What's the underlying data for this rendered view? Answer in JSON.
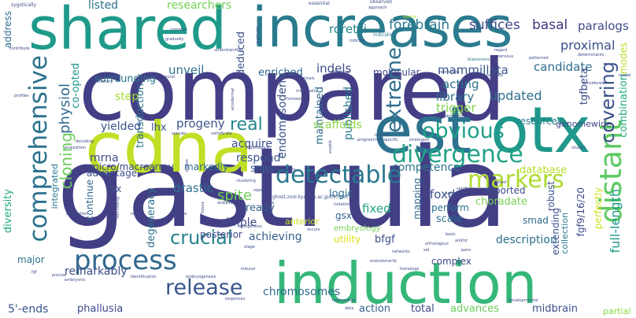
{
  "words": [
    {
      "key": "compared",
      "text": "compared",
      "color": "#433e85"
    },
    {
      "key": "gastrula",
      "text": "gastrula",
      "color": "#423f85"
    },
    {
      "key": "shared",
      "text": "shared",
      "color": "#1f9a8a"
    },
    {
      "key": "increases",
      "text": "increases",
      "color": "#2a7b8e"
    },
    {
      "key": "cdna",
      "text": "cdna",
      "color": "#c0df25"
    },
    {
      "key": "est",
      "text": "est",
      "color": "#2c728e"
    },
    {
      "key": "otx",
      "text": "otx",
      "color": "#1f988b"
    },
    {
      "key": "induction",
      "text": "induction",
      "color": "#35b779"
    },
    {
      "key": "process",
      "text": "process",
      "color": "#31688e"
    },
    {
      "key": "detectable",
      "text": "detectable",
      "color": "#2a788e"
    },
    {
      "key": "comprehensive",
      "text": "comprehensive",
      "color": "#2c738e"
    },
    {
      "key": "distant",
      "text": "distant",
      "color": "#5ec962"
    },
    {
      "key": "divergence",
      "text": "divergence",
      "color": "#20a386"
    },
    {
      "key": "markers",
      "text": "markers",
      "color": "#addc30"
    },
    {
      "key": "obvious",
      "text": "obvious",
      "color": "#1fa088"
    },
    {
      "key": "crucial",
      "text": "crucial",
      "color": "#26828e"
    },
    {
      "key": "release",
      "text": "release",
      "color": "#39558c"
    },
    {
      "key": "extreme",
      "text": "extreme",
      "color": "#2e6d8e"
    },
    {
      "key": "covering",
      "text": "covering",
      "color": "#3b528b"
    },
    {
      "key": "cloning",
      "text": "cloning",
      "color": "#6ccd5a"
    },
    {
      "key": "physiol",
      "text": "physiol",
      "color": "#306a8e"
    },
    {
      "key": "real",
      "text": "real",
      "color": "#24878e"
    },
    {
      "key": "forebrain",
      "text": "forebrain",
      "color": "#2a788e"
    },
    {
      "key": "suffices",
      "text": "suffices",
      "color": "#3f4889"
    },
    {
      "key": "basal",
      "text": "basal",
      "color": "#46337f"
    },
    {
      "key": "paralogs",
      "text": "paralogs",
      "color": "#3e4a89"
    },
    {
      "key": "proximal",
      "text": "proximal",
      "color": "#3c4f8a"
    },
    {
      "key": "listed",
      "text": "listed",
      "color": "#2d708e"
    },
    {
      "key": "researchers",
      "text": "researchers",
      "color": "#75d054"
    },
    {
      "key": "roretzi",
      "text": "roretzi",
      "color": "#25848e"
    },
    {
      "key": "mammillata",
      "text": "mammillata",
      "color": "#3a538b"
    },
    {
      "key": "candidate",
      "text": "candidate",
      "color": "#2f6c8e"
    },
    {
      "key": "indels",
      "text": "indels",
      "color": "#3d4e8a"
    },
    {
      "key": "molecular",
      "text": "molecular",
      "color": "#3e4989"
    },
    {
      "key": "surrounding",
      "text": "surrounding",
      "color": "#2a768e"
    },
    {
      "key": "unveil",
      "text": "unveil",
      "color": "#2d718e"
    },
    {
      "key": "enriched",
      "text": "enriched",
      "color": "#31668e"
    },
    {
      "key": "deduced",
      "text": "deduced",
      "color": "#3b528b"
    },
    {
      "key": "endomesoderm",
      "text": "endomesoderm",
      "color": "#3a538b"
    },
    {
      "key": "maintained",
      "text": "maintained",
      "color": "#2f6b8e"
    },
    {
      "key": "published",
      "text": "published",
      "color": "#29798e"
    },
    {
      "key": "acting",
      "text": "acting",
      "color": "#2a768e"
    },
    {
      "key": "library",
      "text": "library",
      "color": "#2c718e"
    },
    {
      "key": "updated",
      "text": "updated",
      "color": "#2e6e8e"
    },
    {
      "key": "trigger",
      "text": "trigger",
      "color": "#7fd34e"
    },
    {
      "key": "tgfbeta",
      "text": "tgfbeta",
      "color": "#3d4d8a"
    },
    {
      "key": "modes",
      "text": "modes",
      "color": "#b5de2b"
    },
    {
      "key": "combination",
      "text": "combination",
      "color": "#25ab82"
    },
    {
      "key": "step",
      "text": "step",
      "color": "#a8db34"
    },
    {
      "key": "co-opted",
      "text": "co-opted",
      "color": "#1f958b"
    },
    {
      "key": "transduction",
      "text": "transduction",
      "color": "#2c728e"
    },
    {
      "key": "yielded",
      "text": "yielded",
      "color": "#3b528b"
    },
    {
      "key": "lhx",
      "text": "lhx",
      "color": "#3d4e8a"
    },
    {
      "key": "progeny",
      "text": "progeny",
      "color": "#3a548c"
    },
    {
      "key": "scaffolds",
      "text": "scaffolds",
      "color": "#8bd646"
    },
    {
      "key": "resources",
      "text": "resources",
      "color": "#26818e"
    },
    {
      "key": "genomewide",
      "text": "genomewide",
      "color": "#3f4788"
    },
    {
      "key": "acquire",
      "text": "acquire",
      "color": "#3e4c8a"
    },
    {
      "key": "competence",
      "text": "competence",
      "color": "#2c718e"
    },
    {
      "key": "mrna",
      "text": "mrna",
      "color": "#3e4a89"
    },
    {
      "key": "respond",
      "text": "respond",
      "color": "#3a548c"
    },
    {
      "key": "advantage",
      "text": "advantage",
      "color": "#3c4f8a"
    },
    {
      "key": "snps",
      "text": "snps",
      "color": "#355f8d"
    },
    {
      "key": "micro/macroarray",
      "text": "micro/macroarray",
      "color": "#3f4889"
    },
    {
      "key": "markedly",
      "text": "markedly",
      "color": "#2f6c8e"
    },
    {
      "key": "database",
      "text": "database",
      "color": "#b5de2b"
    },
    {
      "key": "reported",
      "text": "reported",
      "color": "#3d4d8a"
    },
    {
      "key": "tadpoles",
      "text": "tadpoles",
      "color": "#3a538b"
    },
    {
      "key": "fgf9/16/20",
      "text": "fgf9/16/20",
      "color": "#3e4a89"
    },
    {
      "key": "perfectly",
      "text": "perfectly",
      "color": "#d0e11c"
    },
    {
      "key": "full-length",
      "text": "full-length",
      "color": "#1f978b"
    },
    {
      "key": "integrated",
      "text": "integrated",
      "color": "#2a778e"
    },
    {
      "key": "diversity",
      "text": "diversity",
      "color": "#22a785"
    },
    {
      "key": "address",
      "text": "address",
      "color": "#2e6d8e"
    },
    {
      "key": "fox",
      "text": "fox",
      "color": "#3d4e8a"
    },
    {
      "key": "continue",
      "text": "continue",
      "color": "#31688e"
    },
    {
      "key": "drastic",
      "text": "drastic",
      "color": "#2c738e"
    },
    {
      "key": "degeneracy",
      "text": "degeneracy",
      "color": "#2c718e"
    },
    {
      "key": "spite",
      "text": "spite",
      "color": "#70cf57"
    },
    {
      "key": "logic",
      "text": "logic",
      "color": "#2c738e"
    },
    {
      "key": "ready",
      "text": "ready",
      "color": "#35608d"
    },
    {
      "key": "gsx",
      "text": "gsx",
      "color": "#35608d"
    },
    {
      "key": "fixed",
      "text": "fixed",
      "color": "#21a685"
    },
    {
      "key": "foxd",
      "text": "foxd",
      "color": "#3a548c"
    },
    {
      "key": "mapping",
      "text": "mapping",
      "color": "#31688e"
    },
    {
      "key": "perform",
      "text": "perform",
      "color": "#2c718e"
    },
    {
      "key": "scale",
      "text": "scale",
      "color": "#2e6f8e"
    },
    {
      "key": "choradate",
      "text": "choradate",
      "color": "#7ad151"
    },
    {
      "key": "robust",
      "text": "robust",
      "color": "#3b518b"
    },
    {
      "key": "extending",
      "text": "extending",
      "color": "#3b528b"
    },
    {
      "key": "smad",
      "text": "smad",
      "color": "#30698e"
    },
    {
      "key": "collection",
      "text": "collection",
      "color": "#2a778e"
    },
    {
      "key": "crucial2",
      "text": "simple",
      "color": "#3e4a89"
    },
    {
      "key": "posterior",
      "text": "posterior",
      "color": "#3e4989"
    },
    {
      "key": "anterior",
      "text": "anterior",
      "color": "#cae11f"
    },
    {
      "key": "embryology",
      "text": "embryology",
      "color": "#75d054"
    },
    {
      "key": "achieving",
      "text": "achieving",
      "color": "#355e8d"
    },
    {
      "key": "utility",
      "text": "utility",
      "color": "#d8e219"
    },
    {
      "key": "bfgf",
      "text": "bfgf",
      "color": "#3e4a89"
    },
    {
      "key": "description",
      "text": "description",
      "color": "#2c718e"
    },
    {
      "key": "remarkably",
      "text": "remarkably",
      "color": "#3d4d8a"
    },
    {
      "key": "major",
      "text": "major",
      "color": "#2d708e"
    },
    {
      "key": "complex",
      "text": "complex",
      "color": "#3e4a89"
    },
    {
      "key": "chromosomes",
      "text": "chromosomes",
      "color": "#2f6c8e"
    },
    {
      "key": "action",
      "text": "action",
      "color": "#355f8d"
    },
    {
      "key": "total",
      "text": "total",
      "color": "#3e4989"
    },
    {
      "key": "advances",
      "text": "advances",
      "color": "#6ccd5a"
    },
    {
      "key": "midbrain",
      "text": "midbrain",
      "color": "#3c4f8a"
    },
    {
      "key": "partial",
      "text": "partial",
      "color": "#8bd646"
    },
    {
      "key": "5-ends",
      "text": "5'-ends",
      "color": "#39568c"
    },
    {
      "key": "phallusia",
      "text": "phallusia",
      "color": "#3e4989"
    },
    {
      "key": "url",
      "text": "ghost.zool.kyoto-u.ac.jp/tft.html",
      "color": "#3b528b"
    },
    {
      "key": "s1",
      "text": "zygotically",
      "color": "#3d4e8a"
    },
    {
      "key": "s2",
      "text": "essential",
      "color": "#3b528b"
    },
    {
      "key": "s3",
      "text": "observed",
      "color": "#3b528b"
    },
    {
      "key": "s4",
      "text": "approach",
      "color": "#3e4a89"
    },
    {
      "key": "s5",
      "text": "vesicle",
      "color": "#b5de2b"
    },
    {
      "key": "s6",
      "text": "indicate",
      "color": "#3e4989"
    },
    {
      "key": "s7",
      "text": "indication",
      "color": "#2a778e"
    },
    {
      "key": "s8",
      "text": "determinants",
      "color": "#3e4a89"
    },
    {
      "key": "s9",
      "text": "regard",
      "color": "#3e4a89"
    },
    {
      "key": "s10",
      "text": "nervous",
      "color": "#3e4a89"
    },
    {
      "key": "s11",
      "text": "patterned",
      "color": "#3e4989"
    },
    {
      "key": "s12",
      "text": "blastomere",
      "color": "#2a788e"
    },
    {
      "key": "s13",
      "text": "neural",
      "color": "#3e4989"
    },
    {
      "key": "s14",
      "text": "restriction",
      "color": "#3e4a89"
    },
    {
      "key": "s15",
      "text": "examined",
      "color": "#3e4a89"
    },
    {
      "key": "s16",
      "text": "considered",
      "color": "#3e4989"
    },
    {
      "key": "s17",
      "text": "model",
      "color": "#3e4a89"
    },
    {
      "key": "s18",
      "text": "genomics",
      "color": "#3e4a89"
    },
    {
      "key": "s19",
      "text": "evolutionary",
      "color": "#3e4a89"
    },
    {
      "key": "s20",
      "text": "animals",
      "color": "#3e4a89"
    },
    {
      "key": "s21",
      "text": "homeobox",
      "color": "#3e4989"
    },
    {
      "key": "s22",
      "text": "downstream",
      "color": "#3e4a89"
    },
    {
      "key": "s23",
      "text": "species",
      "color": "#3e4a89"
    },
    {
      "key": "s24",
      "text": "vertebrate",
      "color": "#3e4a89"
    },
    {
      "key": "s25",
      "text": "ectodermal",
      "color": "#3e4a89"
    },
    {
      "key": "s26",
      "text": "maternally",
      "color": "#3e4a89"
    },
    {
      "key": "s27",
      "text": "line-specific",
      "color": "#3e4a89"
    },
    {
      "key": "s28",
      "text": "strategies",
      "color": "#3e4a89"
    },
    {
      "key": "s29",
      "text": "program",
      "color": "#3e4a89"
    },
    {
      "key": "s30",
      "text": "decoding",
      "color": "#3e4a89"
    },
    {
      "key": "s31",
      "text": "acquisition",
      "color": "#3e4a89"
    },
    {
      "key": "s32",
      "text": "redundancy",
      "color": "#3e4a89"
    },
    {
      "key": "s33",
      "text": "constraints",
      "color": "#3e4a89"
    },
    {
      "key": "s34",
      "text": "subset",
      "color": "#3e4a89"
    },
    {
      "key": "s35",
      "text": "clustering",
      "color": "#3e4a89"
    },
    {
      "key": "s36",
      "text": "repeated",
      "color": "#3e4a89"
    },
    {
      "key": "s37",
      "text": "sequencing",
      "color": "#3e4a89"
    },
    {
      "key": "s38",
      "text": "non-coding",
      "color": "#3e4a89"
    },
    {
      "key": "s39",
      "text": "orientation",
      "color": "#3e4a89"
    },
    {
      "key": "s40",
      "text": "nodal",
      "color": "#3e4a89"
    },
    {
      "key": "s41",
      "text": "analyze",
      "color": "#3e4a89"
    },
    {
      "key": "s42",
      "text": "analyses",
      "color": "#3e4a89"
    },
    {
      "key": "s43",
      "text": "endogenous",
      "color": "#3e4a89"
    },
    {
      "key": "s44",
      "text": "occurs",
      "color": "#3e4a89"
    },
    {
      "key": "s45",
      "text": "networks",
      "color": "#3e4a89"
    },
    {
      "key": "s46",
      "text": "orthologous",
      "color": "#3e4a89"
    },
    {
      "key": "s47",
      "text": "set",
      "color": "#3e4a89"
    },
    {
      "key": "s48",
      "text": "pairs",
      "color": "#3e4a89"
    },
    {
      "key": "s49",
      "text": "inducer",
      "color": "#3e4a89"
    },
    {
      "key": "s50",
      "text": "evolutionarily",
      "color": "#3e4a89"
    },
    {
      "key": "s51",
      "text": "homologs",
      "color": "#3e4a89"
    },
    {
      "key": "s52",
      "text": "identification",
      "color": "#3e4a89"
    },
    {
      "key": "s53",
      "text": "embryogenesis",
      "color": "#3e4a89"
    },
    {
      "key": "s54",
      "text": "precise",
      "color": "#3e4a89"
    },
    {
      "key": "s55",
      "text": "embryonic",
      "color": "#3e4a89"
    },
    {
      "key": "s56",
      "text": "responses",
      "color": "#3e4a89"
    },
    {
      "key": "s57",
      "text": "halocynthia",
      "color": "#3e4a89"
    },
    {
      "key": "s58",
      "text": "data",
      "color": "#3e4a89"
    },
    {
      "key": "s59",
      "text": "developmental",
      "color": "#3e4a89"
    },
    {
      "key": "s60",
      "text": "sandbox",
      "color": "#3e4a89"
    },
    {
      "key": "s61",
      "text": "contribute",
      "color": "#3e4a89"
    },
    {
      "key": "s62",
      "text": "profiles",
      "color": "#3e4a89"
    },
    {
      "key": "s63",
      "text": "common",
      "color": "#3e4a89"
    },
    {
      "key": "s64",
      "text": "gradually",
      "color": "#3e4a89"
    },
    {
      "key": "s65",
      "text": "understanding",
      "color": "#3e4a89"
    },
    {
      "key": "s66",
      "text": "include",
      "color": "#3e4a89"
    },
    {
      "key": "s67",
      "text": "based",
      "color": "#3e4a89"
    },
    {
      "key": "s68",
      "text": "basic",
      "color": "#3e4a89"
    },
    {
      "key": "s69",
      "text": "and/or",
      "color": "#3e4a89"
    },
    {
      "key": "s70",
      "text": "studies",
      "color": "#3e4a89"
    },
    {
      "key": "s71",
      "text": "fgf",
      "color": "#3e4a89"
    },
    {
      "key": "s72",
      "text": "stage",
      "color": "#3e4a89"
    },
    {
      "key": "s73",
      "text": "isolation",
      "color": "#3e4a89"
    },
    {
      "key": "s74",
      "text": "enable",
      "color": "#3e4a89"
    },
    {
      "key": "s75",
      "text": "highlight",
      "color": "#3e4a89"
    },
    {
      "key": "s76",
      "text": "additional",
      "color": "#3e4a89"
    },
    {
      "key": "s77",
      "text": "future",
      "color": "#3e4a89"
    },
    {
      "key": "s78",
      "text": "sox",
      "color": "#3e4a89"
    }
  ]
}
